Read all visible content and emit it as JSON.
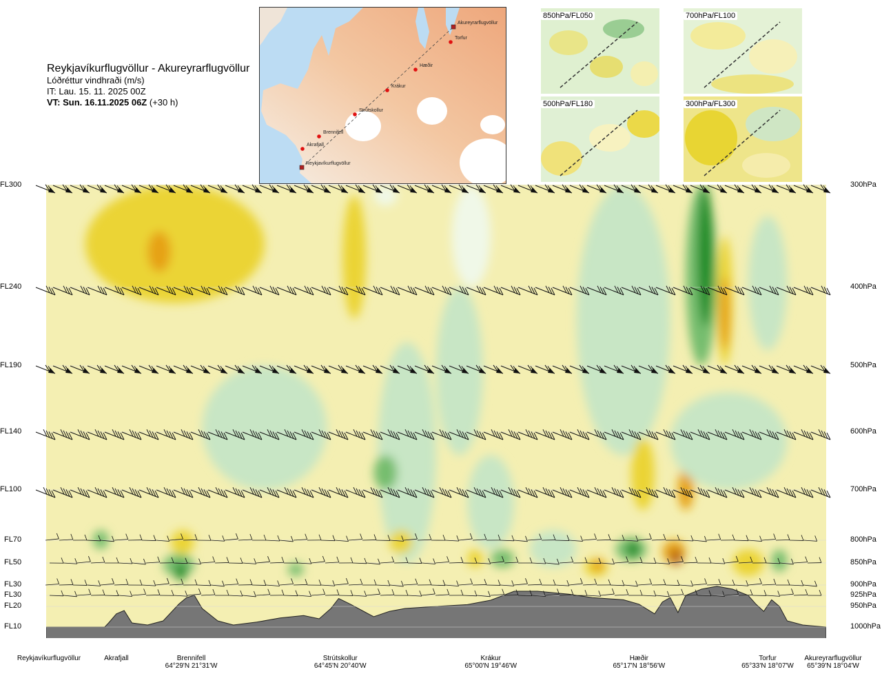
{
  "title": {
    "route": "Reykjavíkurflugvöllur - Akureyrarflugvöllur",
    "variable": "Lóðréttur vindhraði (m/s)",
    "init_time": "IT: Lau. 15. 11. 2025 00Z",
    "valid_time": "VT: Sun. 16.11.2025 06Z",
    "lead": "(+30 h)"
  },
  "map": {
    "stations": [
      "Reykjavíkurflugvöllur",
      "Akrafjall",
      "Brennifell",
      "Strútskollur",
      "Krákur",
      "Hæðir",
      "Torfur",
      "Akureyrarflugvöllur"
    ]
  },
  "panels": [
    "850hPa/FL050",
    "700hPa/FL100",
    "500hPa/FL180",
    "300hPa/FL300"
  ],
  "chart_data": {
    "type": "heatmap",
    "title": "Lóðréttur vindhraði (m/s)",
    "left_axis_labels": [
      "FL300",
      "FL240",
      "FL190",
      "FL140",
      "FL100",
      "FL70",
      "FL50",
      "FL30",
      "FL30",
      "FL20",
      "FL10"
    ],
    "right_axis_labels": [
      "300hPa",
      "400hPa",
      "500hPa",
      "600hPa",
      "700hPa",
      "800hPa",
      "850hPa",
      "900hPa",
      "925hPa",
      "950hPa",
      "1000hPa"
    ],
    "pressure_levels_hpa": [
      300,
      400,
      500,
      600,
      700,
      800,
      850,
      900,
      925,
      950,
      1000
    ],
    "xlim": [
      0,
      1
    ],
    "ylim_hpa": [
      1000,
      300
    ],
    "locations": [
      {
        "name": "Reykjavíkurflugvöllur",
        "coord": "",
        "pos": 0.0
      },
      {
        "name": "Akrafjall",
        "coord": "",
        "pos": 0.09
      },
      {
        "name": "Brennifell",
        "coord": "64°29'N 21°31'W",
        "pos": 0.186
      },
      {
        "name": "Strútskollur",
        "coord": "64°45'N 20°40'W",
        "pos": 0.377
      },
      {
        "name": "Krákur",
        "coord": "65°00'N 19°46'W",
        "pos": 0.57
      },
      {
        "name": "Hæðir",
        "coord": "65°17'N 18°56'W",
        "pos": 0.76
      },
      {
        "name": "Torfur",
        "coord": "65°33'N 18°07'W",
        "pos": 0.947
      },
      {
        "name": "Akureyrarflugvöllur",
        "coord": "65°39'N 18°04'W",
        "pos": 1.0
      }
    ],
    "terrain_hpa": [
      [
        0.0,
        1000
      ],
      [
        0.075,
        1000
      ],
      [
        0.08,
        990
      ],
      [
        0.09,
        968
      ],
      [
        0.1,
        960
      ],
      [
        0.11,
        990
      ],
      [
        0.13,
        995
      ],
      [
        0.15,
        985
      ],
      [
        0.17,
        945
      ],
      [
        0.18,
        930
      ],
      [
        0.19,
        925
      ],
      [
        0.2,
        955
      ],
      [
        0.22,
        985
      ],
      [
        0.24,
        995
      ],
      [
        0.27,
        988
      ],
      [
        0.3,
        978
      ],
      [
        0.33,
        972
      ],
      [
        0.35,
        980
      ],
      [
        0.365,
        955
      ],
      [
        0.375,
        932
      ],
      [
        0.39,
        945
      ],
      [
        0.41,
        965
      ],
      [
        0.42,
        975
      ],
      [
        0.44,
        962
      ],
      [
        0.46,
        955
      ],
      [
        0.5,
        950
      ],
      [
        0.54,
        946
      ],
      [
        0.57,
        936
      ],
      [
        0.6,
        915
      ],
      [
        0.63,
        915
      ],
      [
        0.67,
        922
      ],
      [
        0.7,
        930
      ],
      [
        0.74,
        935
      ],
      [
        0.76,
        945
      ],
      [
        0.78,
        968
      ],
      [
        0.79,
        940
      ],
      [
        0.8,
        930
      ],
      [
        0.81,
        965
      ],
      [
        0.82,
        925
      ],
      [
        0.84,
        910
      ],
      [
        0.86,
        903
      ],
      [
        0.88,
        910
      ],
      [
        0.9,
        925
      ],
      [
        0.91,
        945
      ],
      [
        0.92,
        962
      ],
      [
        0.93,
        935
      ],
      [
        0.94,
        950
      ],
      [
        0.95,
        985
      ],
      [
        0.97,
        995
      ],
      [
        1.0,
        1000
      ]
    ],
    "colors": {
      "strong_up": "#1e8c28",
      "up": "#76bd6e",
      "weak_up": "#c8e6c5",
      "neutral": "#f0f8e8",
      "weak_down": "#f6eea0",
      "down": "#ebd435",
      "strong_down": "#e6a216",
      "very_strong_down": "#b45d12",
      "terrain": "#767676"
    },
    "grid": false
  }
}
